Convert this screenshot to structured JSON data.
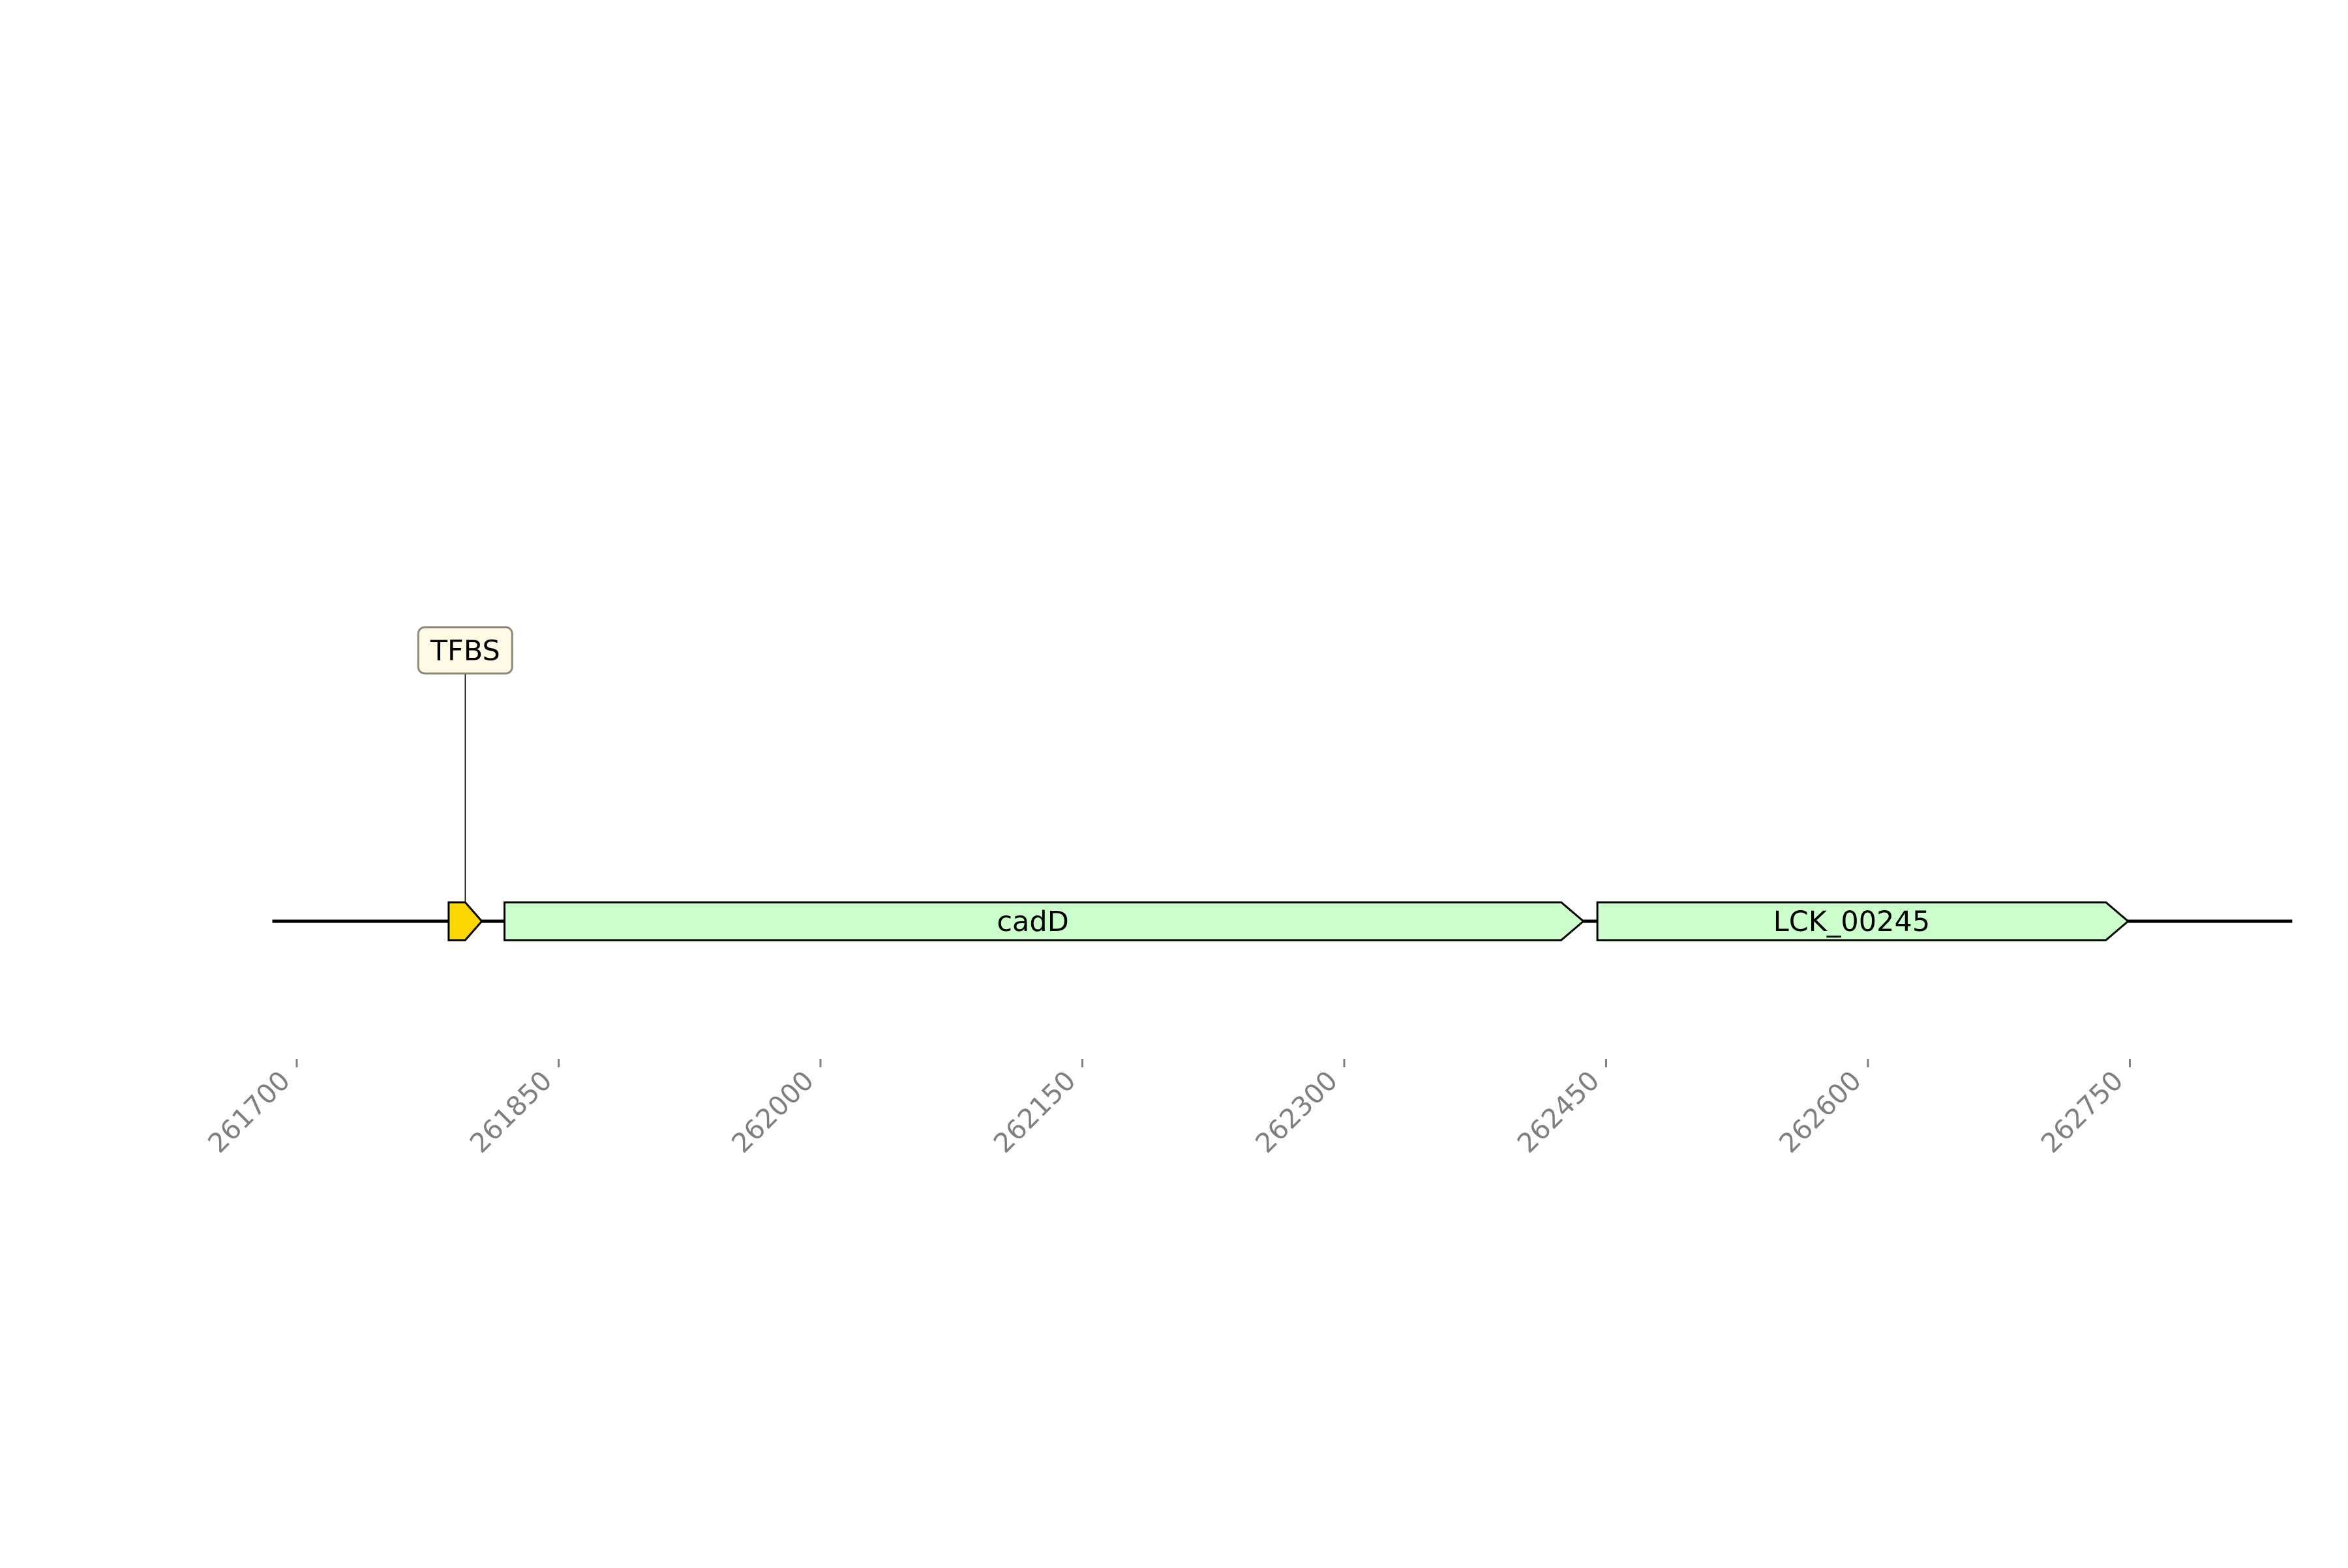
{
  "axis": {
    "ticks": [
      261700,
      261850,
      262000,
      262150,
      262300,
      262450,
      262600,
      262750
    ],
    "tick_color": "#7f7f7f"
  },
  "sequence": {
    "start": 261686,
    "end": 262843,
    "line_color": "#000000"
  },
  "features": [
    {
      "name": "tfbs",
      "label": "TFBS",
      "start": 261787,
      "end": 261806,
      "strand": 1,
      "color": "#ffd700",
      "label_style": "boxed-callout",
      "label_box_color": "#fefae6",
      "label_box_border": "#8b8878"
    },
    {
      "name": "cadD",
      "label": "cadD",
      "start": 261819,
      "end": 262437,
      "strand": 1,
      "color": "#ccffcc",
      "label_style": "inline"
    },
    {
      "name": "lck-00245",
      "label": "LCK_00245",
      "start": 262445,
      "end": 262749,
      "strand": 1,
      "color": "#ccffcc",
      "label_style": "inline"
    }
  ]
}
